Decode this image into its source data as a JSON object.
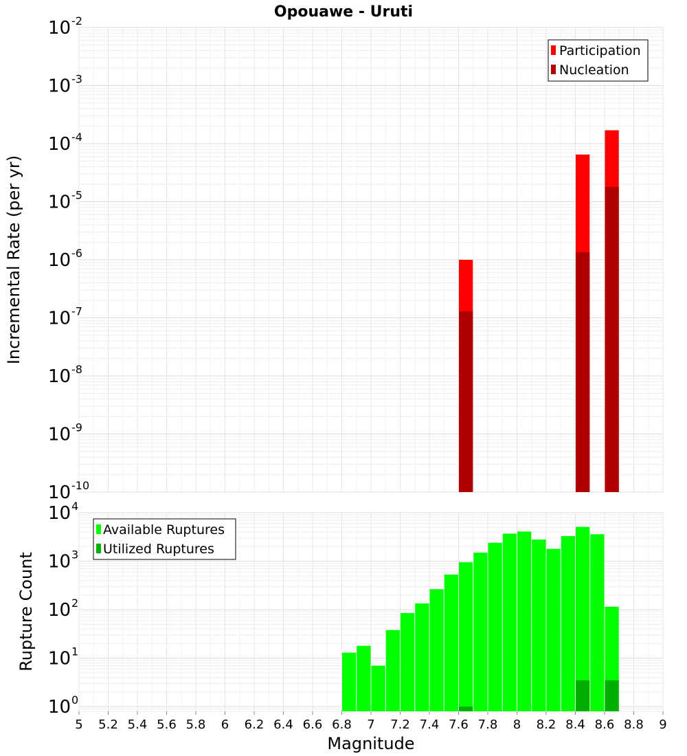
{
  "chart_data": [
    {
      "type": "bar",
      "title": "Opouawe - Uruti",
      "ylabel": "Incremental Rate (per yr)",
      "xlabel": "",
      "x_range": [
        5,
        9
      ],
      "y_scale": "log",
      "y_range": [
        1e-10,
        0.01
      ],
      "y_tick_exponents": [
        -10,
        -9,
        -8,
        -7,
        -6,
        -5,
        -4,
        -3,
        -2
      ],
      "grid": true,
      "legend_position": "top-right",
      "series": [
        {
          "name": "Participation",
          "color": "#ff0000",
          "points": [
            {
              "x": 7.65,
              "y": 1e-06
            },
            {
              "x": 8.45,
              "y": 6.5e-05
            },
            {
              "x": 8.65,
              "y": 0.00017
            }
          ]
        },
        {
          "name": "Nucleation",
          "color": "#b00000",
          "points": [
            {
              "x": 7.65,
              "y": 1.3e-07
            },
            {
              "x": 8.45,
              "y": 1.35e-06
            },
            {
              "x": 8.65,
              "y": 1.8e-05
            }
          ]
        }
      ]
    },
    {
      "type": "bar",
      "title": "",
      "ylabel": "Rupture Count",
      "xlabel": "Magnitude",
      "x_range": [
        5,
        9
      ],
      "x_ticks": [
        "5",
        "5.2",
        "5.4",
        "5.6",
        "5.8",
        "6",
        "6.2",
        "6.4",
        "6.6",
        "6.8",
        "7",
        "7.2",
        "7.4",
        "7.6",
        "7.8",
        "8",
        "8.2",
        "8.4",
        "8.6",
        "8.8",
        "9"
      ],
      "y_scale": "log",
      "y_range": [
        0.8,
        10000
      ],
      "y_tick_exponents": [
        0,
        1,
        2,
        3,
        4
      ],
      "grid": true,
      "legend_position": "top-left",
      "series": [
        {
          "name": "Available Ruptures",
          "color": "#00ff00",
          "points": [
            {
              "x": 6.85,
              "y": 13
            },
            {
              "x": 6.95,
              "y": 18
            },
            {
              "x": 7.05,
              "y": 7
            },
            {
              "x": 7.15,
              "y": 38
            },
            {
              "x": 7.25,
              "y": 85
            },
            {
              "x": 7.35,
              "y": 135
            },
            {
              "x": 7.45,
              "y": 265
            },
            {
              "x": 7.55,
              "y": 530
            },
            {
              "x": 7.65,
              "y": 950
            },
            {
              "x": 7.75,
              "y": 1500
            },
            {
              "x": 7.85,
              "y": 2400
            },
            {
              "x": 7.95,
              "y": 3700
            },
            {
              "x": 8.05,
              "y": 4100
            },
            {
              "x": 8.15,
              "y": 2800
            },
            {
              "x": 8.25,
              "y": 1800
            },
            {
              "x": 8.35,
              "y": 3300
            },
            {
              "x": 8.45,
              "y": 5100
            },
            {
              "x": 8.55,
              "y": 3600
            },
            {
              "x": 8.65,
              "y": 115
            }
          ]
        },
        {
          "name": "Utilized Ruptures",
          "color": "#00b000",
          "points": [
            {
              "x": 7.65,
              "y": 1
            },
            {
              "x": 8.45,
              "y": 3.5
            },
            {
              "x": 8.65,
              "y": 3.5
            }
          ]
        }
      ]
    }
  ]
}
